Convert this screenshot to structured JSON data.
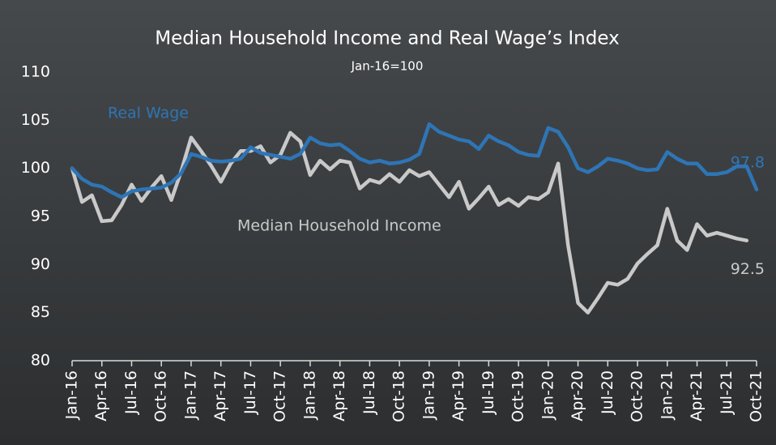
{
  "chart_data": {
    "type": "line",
    "title": "Median Household Income and Real Wage’s Index",
    "subtitle": "Jan-16=100",
    "categories": [
      "Jan-16",
      null,
      null,
      "Apr-16",
      null,
      null,
      "Jul-16",
      null,
      null,
      "Oct-16",
      null,
      null,
      "Jan-17",
      null,
      null,
      "Apr-17",
      null,
      null,
      "Jul-17",
      null,
      null,
      "Oct-17",
      null,
      null,
      "Jan-18",
      null,
      null,
      "Apr-18",
      null,
      null,
      "Jul-18",
      null,
      null,
      "Oct-18",
      null,
      null,
      "Jan-19",
      null,
      null,
      "Apr-19",
      null,
      null,
      "Jul-19",
      null,
      null,
      "Oct-19",
      null,
      null,
      "Jan-20",
      null,
      null,
      "Apr-20",
      null,
      null,
      "Jul-20",
      null,
      null,
      "Oct-20",
      null,
      null,
      "Jan-21",
      null,
      null,
      "Apr-21",
      null,
      null,
      "Jul-21",
      null,
      null,
      "Oct-21"
    ],
    "series": [
      {
        "name": "Real Wage",
        "color": "#2e75b6",
        "values": [
          100,
          98.9,
          98.3,
          98.1,
          97.5,
          97.0,
          97.6,
          97.8,
          97.9,
          98.0,
          98.5,
          99.5,
          101.5,
          101.2,
          100.8,
          100.7,
          100.8,
          101.0,
          102.2,
          101.6,
          101.4,
          101.2,
          101.0,
          101.5,
          103.2,
          102.6,
          102.4,
          102.5,
          101.8,
          101.0,
          100.6,
          100.8,
          100.5,
          100.6,
          100.9,
          101.5,
          104.6,
          103.8,
          103.4,
          103.0,
          102.8,
          102.0,
          103.4,
          102.8,
          102.4,
          101.7,
          101.4,
          101.3,
          104.2,
          103.8,
          102.2,
          100.0,
          99.6,
          100.2,
          101.0,
          100.8,
          100.5,
          100.0,
          99.8,
          99.9,
          101.7,
          101.0,
          100.5,
          100.5,
          99.4,
          99.4,
          99.6,
          100.2,
          100.2,
          97.8
        ]
      },
      {
        "name": "Median Household Income",
        "color": "#c9c9c9",
        "values": [
          100,
          96.5,
          97.2,
          94.5,
          94.6,
          96.2,
          98.3,
          96.6,
          98.0,
          99.2,
          96.7,
          99.7,
          103.2,
          101.8,
          100.3,
          98.6,
          100.5,
          101.8,
          101.8,
          102.3,
          100.6,
          101.4,
          103.7,
          102.8,
          99.3,
          100.8,
          99.9,
          100.8,
          100.6,
          97.9,
          98.8,
          98.5,
          99.4,
          98.6,
          99.8,
          99.2,
          99.6,
          98.3,
          97.0,
          98.6,
          95.8,
          96.9,
          98.1,
          96.2,
          96.8,
          96.1,
          97.0,
          96.8,
          97.5,
          100.5,
          92.0,
          86.0,
          85.0,
          86.5,
          88.1,
          87.9,
          88.5,
          90.1,
          91.1,
          92.0,
          95.8,
          92.5,
          91.5,
          94.2,
          93.0,
          93.3,
          93.0,
          92.7,
          92.5,
          null
        ]
      }
    ],
    "ylim": [
      80,
      110
    ],
    "yticks": [
      80,
      85,
      90,
      95,
      100,
      105,
      110
    ]
  }
}
